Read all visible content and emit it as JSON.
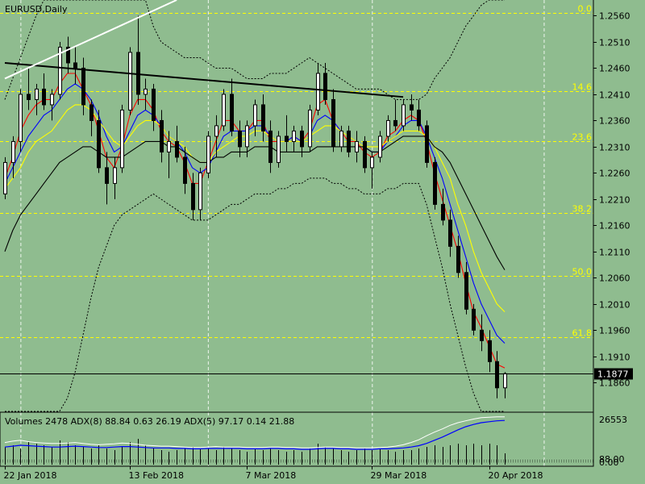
{
  "chart_data": [
    {
      "type": "candlestick",
      "title": "EURUSD,Daily",
      "ylim": [
        1.1805,
        1.259
      ],
      "y_ticks": [
        "1.2560",
        "1.2510",
        "1.2460",
        "1.2410",
        "1.2360",
        "1.2310",
        "1.2260",
        "1.2210",
        "1.2160",
        "1.2110",
        "1.2060",
        "1.2010",
        "1.1960",
        "1.1910",
        "1.1860"
      ],
      "current_price": 1.1877,
      "current_price_label": "1.1877",
      "x_labels": [
        {
          "label": "22 Jan 2018",
          "index": 0
        },
        {
          "label": "13 Feb 2018",
          "index": 16
        },
        {
          "label": "7 Mar 2018",
          "index": 31
        },
        {
          "label": "29 Mar 2018",
          "index": 47
        },
        {
          "label": "20 Apr 2018",
          "index": 62
        }
      ],
      "fibonacci_levels": [
        {
          "label": "0.0",
          "price": 1.2566
        },
        {
          "label": "14.6",
          "price": 1.2416
        },
        {
          "label": "23.6",
          "price": 1.2321
        },
        {
          "label": "38.2",
          "price": 1.2183
        },
        {
          "label": "50.0",
          "price": 1.2064
        },
        {
          "label": "61.8",
          "price": 1.1946
        }
      ],
      "vertical_gridlines": [
        2,
        26,
        47,
        69
      ],
      "candles": [
        [
          1.222,
          1.229,
          1.221,
          1.228
        ],
        [
          1.228,
          1.233,
          1.225,
          1.232
        ],
        [
          1.232,
          1.242,
          1.23,
          1.241
        ],
        [
          1.241,
          1.246,
          1.238,
          1.24
        ],
        [
          1.24,
          1.243,
          1.237,
          1.242
        ],
        [
          1.242,
          1.245,
          1.238,
          1.239
        ],
        [
          1.239,
          1.242,
          1.236,
          1.241
        ],
        [
          1.241,
          1.251,
          1.24,
          1.25
        ],
        [
          1.25,
          1.252,
          1.245,
          1.247
        ],
        [
          1.247,
          1.25,
          1.243,
          1.246
        ],
        [
          1.246,
          1.248,
          1.237,
          1.239
        ],
        [
          1.239,
          1.24,
          1.233,
          1.236
        ],
        [
          1.236,
          1.238,
          1.226,
          1.227
        ],
        [
          1.227,
          1.23,
          1.22,
          1.224
        ],
        [
          1.224,
          1.229,
          1.221,
          1.227
        ],
        [
          1.227,
          1.239,
          1.226,
          1.238
        ],
        [
          1.238,
          1.25,
          1.237,
          1.249
        ],
        [
          1.249,
          1.256,
          1.239,
          1.241
        ],
        [
          1.241,
          1.244,
          1.238,
          1.242
        ],
        [
          1.242,
          1.243,
          1.234,
          1.236
        ],
        [
          1.236,
          1.238,
          1.228,
          1.23
        ],
        [
          1.23,
          1.234,
          1.225,
          1.232
        ],
        [
          1.232,
          1.235,
          1.228,
          1.229
        ],
        [
          1.229,
          1.231,
          1.222,
          1.224
        ],
        [
          1.224,
          1.226,
          1.217,
          1.219
        ],
        [
          1.219,
          1.227,
          1.217,
          1.226
        ],
        [
          1.226,
          1.234,
          1.225,
          1.233
        ],
        [
          1.233,
          1.237,
          1.229,
          1.235
        ],
        [
          1.235,
          1.242,
          1.234,
          1.241
        ],
        [
          1.241,
          1.244,
          1.233,
          1.234
        ],
        [
          1.234,
          1.236,
          1.229,
          1.231
        ],
        [
          1.231,
          1.236,
          1.229,
          1.235
        ],
        [
          1.235,
          1.24,
          1.233,
          1.239
        ],
        [
          1.239,
          1.241,
          1.232,
          1.234
        ],
        [
          1.234,
          1.236,
          1.226,
          1.228
        ],
        [
          1.228,
          1.234,
          1.227,
          1.233
        ],
        [
          1.233,
          1.237,
          1.23,
          1.232
        ],
        [
          1.232,
          1.235,
          1.23,
          1.234
        ],
        [
          1.234,
          1.235,
          1.229,
          1.231
        ],
        [
          1.231,
          1.239,
          1.23,
          1.238
        ],
        [
          1.238,
          1.247,
          1.237,
          1.245
        ],
        [
          1.245,
          1.247,
          1.239,
          1.24
        ],
        [
          1.24,
          1.242,
          1.23,
          1.231
        ],
        [
          1.231,
          1.235,
          1.23,
          1.234
        ],
        [
          1.234,
          1.235,
          1.229,
          1.23
        ],
        [
          1.23,
          1.234,
          1.228,
          1.232
        ],
        [
          1.232,
          1.233,
          1.226,
          1.227
        ],
        [
          1.227,
          1.23,
          1.223,
          1.229
        ],
        [
          1.229,
          1.234,
          1.228,
          1.233
        ],
        [
          1.233,
          1.237,
          1.232,
          1.236
        ],
        [
          1.236,
          1.24,
          1.234,
          1.235
        ],
        [
          1.235,
          1.24,
          1.234,
          1.239
        ],
        [
          1.239,
          1.241,
          1.236,
          1.238
        ],
        [
          1.238,
          1.24,
          1.234,
          1.235
        ],
        [
          1.235,
          1.236,
          1.227,
          1.228
        ],
        [
          1.228,
          1.229,
          1.219,
          1.22
        ],
        [
          1.22,
          1.223,
          1.216,
          1.217
        ],
        [
          1.217,
          1.219,
          1.21,
          1.212
        ],
        [
          1.212,
          1.214,
          1.206,
          1.207
        ],
        [
          1.207,
          1.209,
          1.199,
          1.2
        ],
        [
          1.2,
          1.201,
          1.195,
          1.196
        ],
        [
          1.196,
          1.199,
          1.192,
          1.194
        ],
        [
          1.194,
          1.196,
          1.188,
          1.19
        ],
        [
          1.19,
          1.192,
          1.183,
          1.185
        ],
        [
          1.185,
          1.188,
          1.183,
          1.1877
        ]
      ],
      "ma_lines": [
        {
          "color": "#ff0000",
          "values": [
            1.225,
            1.229,
            1.234,
            1.237,
            1.239,
            1.24,
            1.24,
            1.243,
            1.245,
            1.245,
            1.242,
            1.239,
            1.234,
            1.229,
            1.227,
            1.231,
            1.237,
            1.24,
            1.24,
            1.238,
            1.234,
            1.232,
            1.231,
            1.228,
            1.224,
            1.224,
            1.228,
            1.232,
            1.236,
            1.236,
            1.234,
            1.234,
            1.236,
            1.236,
            1.232,
            1.232,
            1.232,
            1.233,
            1.232,
            1.234,
            1.239,
            1.24,
            1.236,
            1.234,
            1.232,
            1.232,
            1.23,
            1.229,
            1.23,
            1.233,
            1.234,
            1.236,
            1.237,
            1.236,
            1.232,
            1.226,
            1.221,
            1.216,
            1.211,
            1.205,
            1.1995,
            1.1965,
            1.193,
            1.1895,
            1.1888
          ]
        },
        {
          "color": "#0000ff",
          "values": [
            1.224,
            1.227,
            1.23,
            1.233,
            1.235,
            1.237,
            1.238,
            1.24,
            1.242,
            1.243,
            1.242,
            1.24,
            1.237,
            1.233,
            1.23,
            1.231,
            1.234,
            1.237,
            1.238,
            1.237,
            1.235,
            1.233,
            1.232,
            1.23,
            1.227,
            1.226,
            1.227,
            1.23,
            1.233,
            1.234,
            1.234,
            1.234,
            1.235,
            1.235,
            1.233,
            1.232,
            1.232,
            1.233,
            1.232,
            1.233,
            1.236,
            1.237,
            1.236,
            1.234,
            1.233,
            1.232,
            1.231,
            1.23,
            1.23,
            1.232,
            1.233,
            1.235,
            1.236,
            1.236,
            1.233,
            1.229,
            1.225,
            1.22,
            1.215,
            1.21,
            1.205,
            1.201,
            1.198,
            1.195,
            1.1935
          ]
        },
        {
          "color": "#ffff00",
          "values": [
            1.223,
            1.225,
            1.227,
            1.23,
            1.232,
            1.233,
            1.234,
            1.236,
            1.238,
            1.239,
            1.239,
            1.238,
            1.236,
            1.234,
            1.232,
            1.231,
            1.233,
            1.235,
            1.236,
            1.236,
            1.235,
            1.233,
            1.232,
            1.231,
            1.229,
            1.228,
            1.228,
            1.23,
            1.231,
            1.232,
            1.233,
            1.233,
            1.234,
            1.234,
            1.233,
            1.232,
            1.232,
            1.232,
            1.232,
            1.233,
            1.234,
            1.235,
            1.235,
            1.234,
            1.233,
            1.232,
            1.231,
            1.231,
            1.231,
            1.232,
            1.233,
            1.234,
            1.234,
            1.234,
            1.233,
            1.231,
            1.228,
            1.225,
            1.22,
            1.216,
            1.211,
            1.207,
            1.204,
            1.201,
            1.1995
          ]
        },
        {
          "color": "#000000",
          "values": [
            1.211,
            1.215,
            1.218,
            1.22,
            1.222,
            1.224,
            1.226,
            1.228,
            1.229,
            1.23,
            1.231,
            1.231,
            1.23,
            1.229,
            1.229,
            1.229,
            1.23,
            1.231,
            1.232,
            1.232,
            1.232,
            1.231,
            1.231,
            1.23,
            1.229,
            1.228,
            1.228,
            1.229,
            1.229,
            1.23,
            1.23,
            1.23,
            1.231,
            1.231,
            1.231,
            1.23,
            1.23,
            1.23,
            1.23,
            1.23,
            1.231,
            1.231,
            1.231,
            1.231,
            1.231,
            1.231,
            1.231,
            1.23,
            1.23,
            1.231,
            1.232,
            1.233,
            1.233,
            1.233,
            1.233,
            1.231,
            1.23,
            1.228,
            1.225,
            1.222,
            1.219,
            1.216,
            1.213,
            1.21,
            1.2075
          ]
        }
      ],
      "bollinger_upper": [
        1.24,
        1.244,
        1.248,
        1.252,
        1.256,
        1.259,
        1.26,
        1.26,
        1.26,
        1.26,
        1.26,
        1.26,
        1.26,
        1.26,
        1.26,
        1.26,
        1.26,
        1.26,
        1.26,
        1.254,
        1.251,
        1.25,
        1.249,
        1.248,
        1.248,
        1.248,
        1.247,
        1.246,
        1.246,
        1.246,
        1.245,
        1.244,
        1.244,
        1.244,
        1.245,
        1.245,
        1.245,
        1.246,
        1.247,
        1.248,
        1.247,
        1.246,
        1.245,
        1.244,
        1.243,
        1.242,
        1.242,
        1.242,
        1.242,
        1.241,
        1.24,
        1.24,
        1.24,
        1.24,
        1.241,
        1.244,
        1.246,
        1.248,
        1.251,
        1.254,
        1.256,
        1.258,
        1.259,
        1.26,
        1.26
      ],
      "bollinger_lower": [
        1.1805,
        1.1805,
        1.1805,
        1.1805,
        1.1805,
        1.1805,
        1.1805,
        1.1805,
        1.183,
        1.188,
        1.195,
        1.202,
        1.208,
        1.212,
        1.216,
        1.218,
        1.219,
        1.22,
        1.221,
        1.222,
        1.221,
        1.22,
        1.219,
        1.218,
        1.217,
        1.217,
        1.217,
        1.218,
        1.219,
        1.22,
        1.22,
        1.221,
        1.222,
        1.222,
        1.222,
        1.223,
        1.223,
        1.224,
        1.224,
        1.225,
        1.225,
        1.225,
        1.224,
        1.224,
        1.223,
        1.223,
        1.222,
        1.222,
        1.222,
        1.223,
        1.223,
        1.224,
        1.224,
        1.224,
        1.22,
        1.214,
        1.208,
        1.201,
        1.195,
        1.189,
        1.184,
        1.1805,
        1.1805,
        1.1805,
        1.1805
      ],
      "trendlines": [
        {
          "color": "#000000",
          "from": [
            0,
            1.247
          ],
          "to": [
            51,
            1.2405
          ]
        },
        {
          "color": "#ffffff",
          "from": [
            0,
            1.244
          ],
          "to": [
            22,
            1.259
          ]
        }
      ]
    },
    {
      "type": "indicator",
      "label": "Volumes 2478 ADX(8) 88.84 0.63 26.19 ADX(5) 97.17 0.14 21.88",
      "y_tick_labels": [
        "26553",
        "88.00",
        "0.00"
      ],
      "adx_blue": [
        30,
        32,
        34,
        33,
        32,
        31,
        30,
        30,
        31,
        32,
        31,
        30,
        29,
        29,
        30,
        31,
        31,
        30,
        29,
        28,
        28,
        28,
        27,
        27,
        26,
        26,
        27,
        27,
        27,
        27,
        27,
        26,
        26,
        26,
        27,
        27,
        26,
        26,
        25,
        25,
        26,
        27,
        27,
        26,
        26,
        25,
        25,
        25,
        26,
        26,
        27,
        28,
        30,
        33,
        38,
        45,
        52,
        60,
        68,
        75,
        80,
        84,
        86,
        88,
        89
      ],
      "adx_white": [
        40,
        43,
        45,
        42,
        40,
        39,
        38,
        38,
        39,
        40,
        38,
        36,
        35,
        36,
        37,
        39,
        38,
        36,
        34,
        33,
        32,
        32,
        31,
        30,
        29,
        29,
        30,
        31,
        30,
        30,
        30,
        29,
        29,
        29,
        30,
        30,
        29,
        29,
        28,
        28,
        29,
        30,
        30,
        29,
        29,
        28,
        28,
        28,
        29,
        30,
        32,
        35,
        40,
        46,
        55,
        63,
        70,
        78,
        84,
        88,
        92,
        95,
        96,
        97,
        97
      ],
      "volumes": [
        0.55,
        0.6,
        0.5,
        0.7,
        0.65,
        0.6,
        0.55,
        0.75,
        0.7,
        0.6,
        0.55,
        0.5,
        0.6,
        0.5,
        0.45,
        0.55,
        0.7,
        0.8,
        0.6,
        0.5,
        0.45,
        0.4,
        0.45,
        0.5,
        0.55,
        0.5,
        0.5,
        0.45,
        0.55,
        0.5,
        0.45,
        0.4,
        0.5,
        0.45,
        0.5,
        0.45,
        0.4,
        0.45,
        0.4,
        0.5,
        0.65,
        0.55,
        0.5,
        0.45,
        0.4,
        0.45,
        0.5,
        0.45,
        0.5,
        0.45,
        0.4,
        0.45,
        0.45,
        0.5,
        0.55,
        0.6,
        0.55,
        0.6,
        0.65,
        0.6,
        0.65,
        0.6,
        0.65,
        0.6,
        0.35
      ]
    }
  ]
}
